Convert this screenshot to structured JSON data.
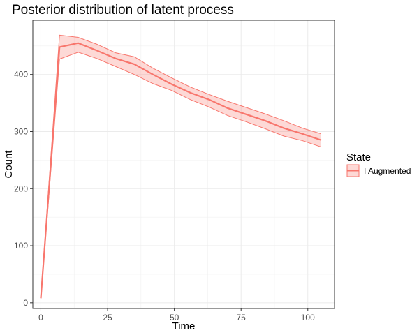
{
  "chart_data": {
    "type": "line",
    "title": "Posterior distribution of latent process",
    "xlabel": "Time",
    "ylabel": "Count",
    "xlim": [
      -3,
      110
    ],
    "ylim": [
      -10,
      495
    ],
    "xticks": [
      0,
      25,
      50,
      75,
      100
    ],
    "yticks": [
      0,
      100,
      200,
      300,
      400
    ],
    "grid": true,
    "legend": {
      "title": "State",
      "position": "right"
    },
    "series": [
      {
        "name": "I Augmented",
        "color": "#f8766d",
        "x": [
          0,
          7,
          14,
          21,
          28,
          35,
          42,
          49,
          56,
          63,
          70,
          77,
          84,
          91,
          98,
          105
        ],
        "y": [
          8,
          448,
          455,
          442,
          428,
          418,
          400,
          383,
          368,
          356,
          341,
          330,
          319,
          306,
          296,
          285
        ],
        "lower": [
          6,
          427,
          439,
          428,
          414,
          400,
          384,
          372,
          356,
          343,
          328,
          317,
          305,
          292,
          284,
          273
        ],
        "upper": [
          10,
          469,
          465,
          453,
          438,
          431,
          411,
          394,
          378,
          365,
          353,
          342,
          331,
          319,
          306,
          296
        ]
      }
    ]
  }
}
